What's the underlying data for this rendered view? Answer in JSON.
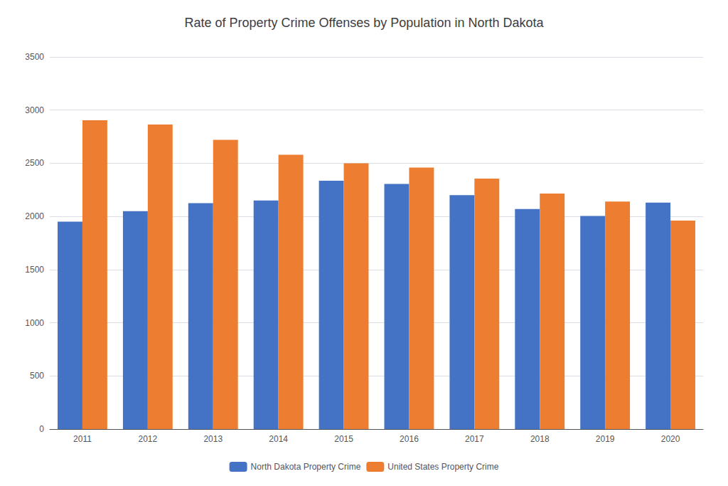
{
  "chart_data": {
    "type": "bar",
    "title": "Rate of Property Crime Offenses by Population in North Dakota",
    "categories": [
      "2011",
      "2012",
      "2013",
      "2014",
      "2015",
      "2016",
      "2017",
      "2018",
      "2019",
      "2020"
    ],
    "series": [
      {
        "name": "North Dakota Property Crime",
        "color": "#4472C4",
        "values": [
          1950,
          2050,
          2125,
          2150,
          2335,
          2305,
          2200,
          2070,
          2005,
          2130
        ]
      },
      {
        "name": "United States Property Crime",
        "color": "#ED7D31",
        "values": [
          2905,
          2865,
          2720,
          2580,
          2500,
          2460,
          2355,
          2215,
          2140,
          1960
        ]
      }
    ],
    "ylim": [
      0,
      3500
    ],
    "yticks": [
      0,
      500,
      1000,
      1500,
      2000,
      2500,
      3000,
      3500
    ],
    "grid": true,
    "legend": "bottom"
  }
}
